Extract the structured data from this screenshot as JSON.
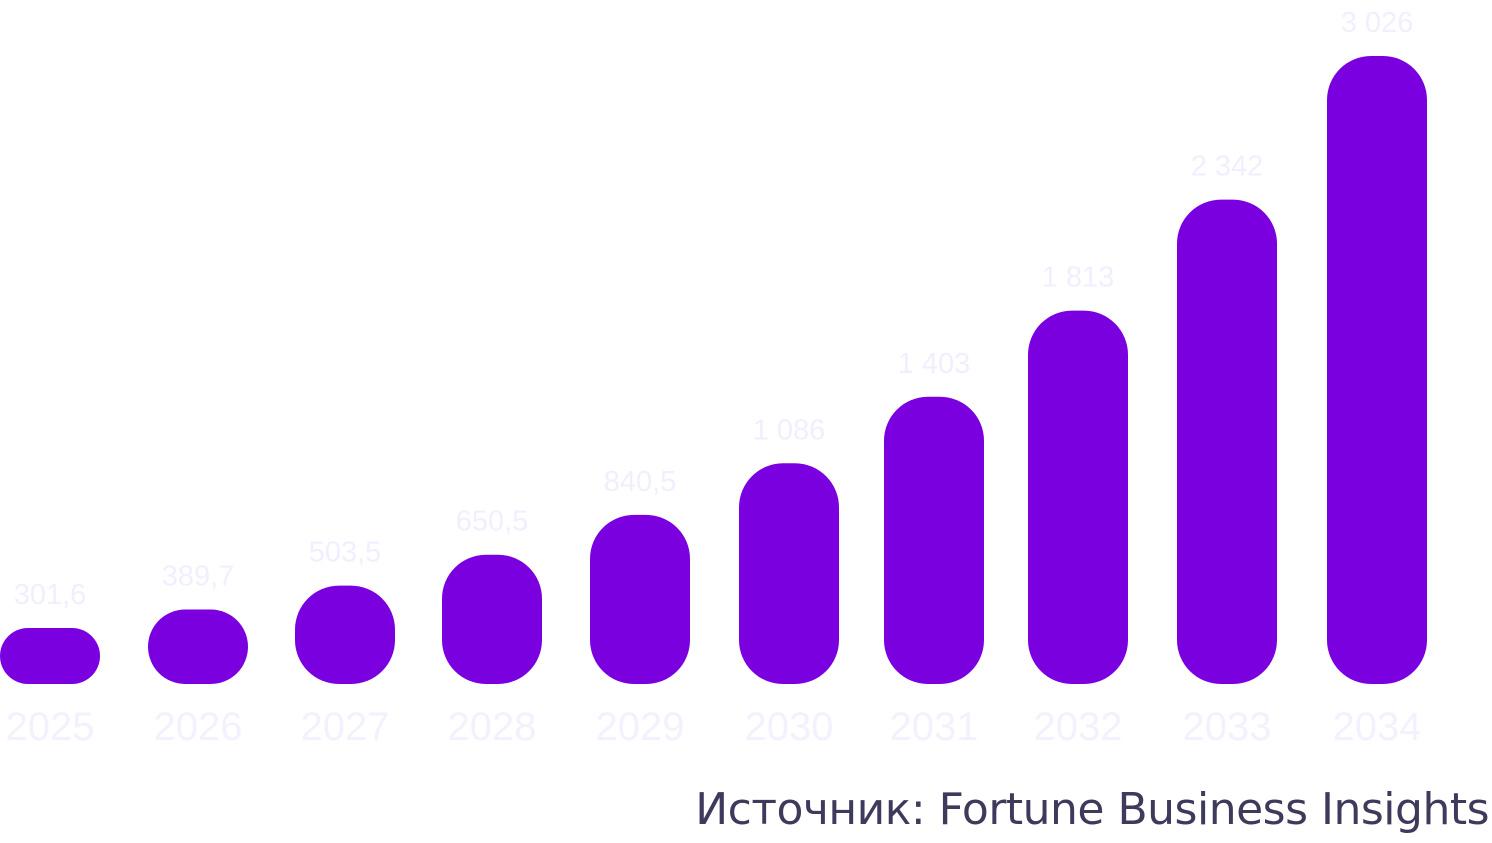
{
  "chart_data": {
    "type": "bar",
    "categories": [
      "2025",
      "2026",
      "2027",
      "2028",
      "2029",
      "2030",
      "2031",
      "2032",
      "2033",
      "2034"
    ],
    "values": [
      301.6,
      389.7,
      503.5,
      650.5,
      840.5,
      1086,
      1403,
      1813,
      2342,
      3026
    ],
    "value_labels": [
      "301,6",
      "389,7",
      "503,5",
      "650,5",
      "840,5",
      "1 086",
      "1 403",
      "1 813",
      "2 342",
      "3 026"
    ],
    "title": "",
    "xlabel": "",
    "ylabel": "",
    "ylim": [
      0,
      3026
    ],
    "grid": false,
    "legend": "none",
    "colors": {
      "bar": "#7b00e0",
      "value_label": "#f0efff",
      "year_label": "#f2f2ff"
    }
  },
  "source": {
    "text": "Источник: Fortune Business Insights",
    "color": "#3d3a5c"
  }
}
